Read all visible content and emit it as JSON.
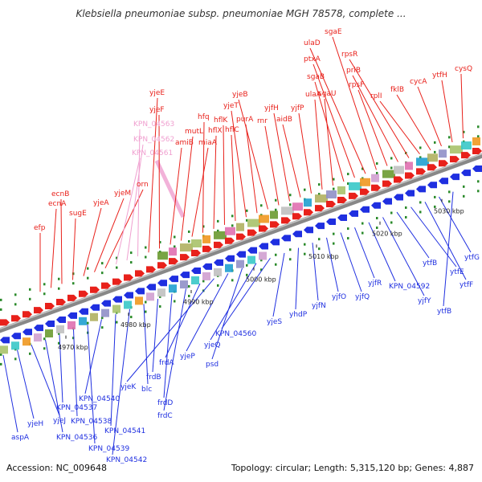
{
  "title": "Klebsiella pneumoniae subsp. pneumoniae MGH 78578, complete ...",
  "accession": "Accession: NC_009648",
  "topology": "Topology: circular; Length: 5,315,120 bp; Genes: 4,887",
  "ticks": [
    "4970 kbp",
    "4980 kbp",
    "4990 kbp",
    "5000 kbp",
    "5010 kbp",
    "5020 kbp",
    "5030 kbp"
  ],
  "colors": {
    "forward": "#e8211b",
    "reverse": "#1f2fe0",
    "rna": "#f0a0d0",
    "backbone": "#8f8f8f"
  },
  "labels_top": [
    "efp",
    "ecnA",
    "ecnB",
    "sugE",
    "yjeA",
    "yjeM",
    "orn",
    "KPN_04561",
    "KPN_04562",
    "KPN_04563",
    "yjeE",
    "yjeF",
    "amiB",
    "mutL",
    "miaA",
    "hfq",
    "hflX",
    "hflK",
    "hflC",
    "yjeT",
    "purA",
    "yjeB",
    "rnr",
    "yjfH",
    "aidB",
    "yjfP",
    "ulaA",
    "sgaU",
    "sgaB",
    "ptxA",
    "ulaD",
    "sgaE",
    "rpsF",
    "priB",
    "rpsR",
    "rplI",
    "fklB",
    "cycA",
    "ytfH",
    "cysQ"
  ],
  "labels_bottom": [
    "aspA",
    "yjeH",
    "yjeJ",
    "KPN_04536",
    "KPN_04537",
    "KPN_04538",
    "KPN_04539",
    "KPN_04540",
    "KPN_04541",
    "KPN_04542",
    "blc",
    "frdB",
    "frdD",
    "frdC",
    "frdA",
    "yjeK",
    "yjeP",
    "psd",
    "yjeQ",
    "KPN_04560",
    "yjeS",
    "yhdP",
    "yjfN",
    "yjfO",
    "yjfQ",
    "yjfR",
    "KPN_04592",
    "yjfY",
    "ytfB",
    "ytfE",
    "ytfF",
    "ytfG",
    "ytfB"
  ]
}
